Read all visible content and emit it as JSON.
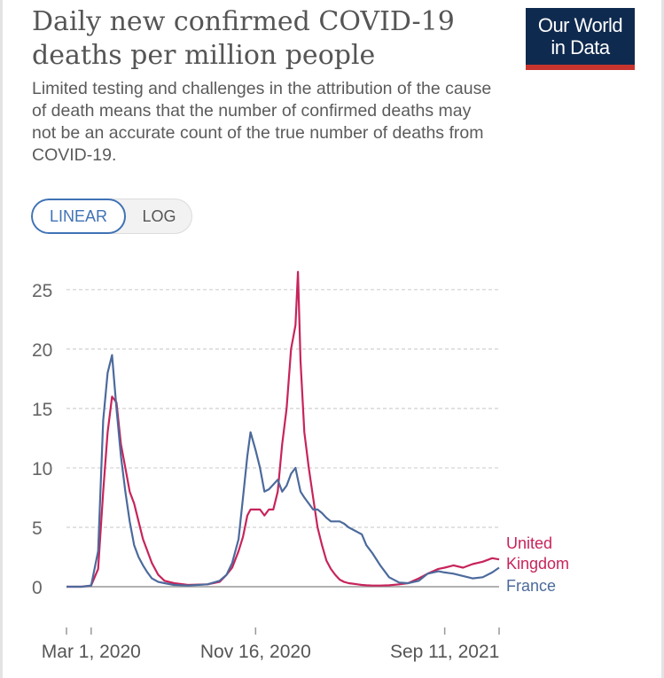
{
  "header": {
    "title_line1": "Daily new confirmed COVID-19",
    "title_line2": "deaths per million people",
    "subtitle": "Limited testing and challenges in the attribution of the cause of death means that the number of confirmed deaths may not be an accurate count of the true number of deaths from COVID-19.",
    "logo_line1": "Our World",
    "logo_line2": "in Data"
  },
  "scale_toggle": {
    "linear_label": "LINEAR",
    "log_label": "LOG",
    "selected": "LINEAR"
  },
  "colors": {
    "uk": "#c7245a",
    "france": "#4c6a9c",
    "grid": "#d0d0d0",
    "axis": "#999999",
    "toggle_accent": "#3f72b5"
  },
  "chart_data": {
    "type": "line",
    "title": "Daily new confirmed COVID-19 deaths per million people",
    "ylim": [
      0,
      27
    ],
    "yticks": [
      0,
      5,
      10,
      15,
      20,
      25
    ],
    "ytick_labels": [
      "0",
      "5",
      "10",
      "15",
      "20",
      "25"
    ],
    "xlim": [
      "2020-01-22",
      "2021-12-06"
    ],
    "xticks": [
      "2020-01-22",
      "2020-03-01",
      "2020-11-16",
      "2021-09-11",
      "2021-12-06"
    ],
    "xtick_labels": [
      "",
      "Mar 1, 2020",
      "Nov 16, 2020",
      "Sep 11, 2021",
      ""
    ],
    "grid": true,
    "x": [
      "2020-01-22",
      "2020-02-15",
      "2020-03-01",
      "2020-03-12",
      "2020-03-20",
      "2020-03-27",
      "2020-04-03",
      "2020-04-10",
      "2020-04-17",
      "2020-04-24",
      "2020-05-01",
      "2020-05-08",
      "2020-05-15",
      "2020-05-22",
      "2020-05-29",
      "2020-06-05",
      "2020-06-15",
      "2020-06-25",
      "2020-07-10",
      "2020-08-01",
      "2020-09-01",
      "2020-09-20",
      "2020-10-01",
      "2020-10-10",
      "2020-10-20",
      "2020-10-27",
      "2020-11-03",
      "2020-11-08",
      "2020-11-16",
      "2020-11-23",
      "2020-11-30",
      "2020-12-07",
      "2020-12-14",
      "2020-12-21",
      "2020-12-28",
      "2021-01-04",
      "2021-01-11",
      "2021-01-18",
      "2021-01-22",
      "2021-01-26",
      "2021-02-01",
      "2021-02-08",
      "2021-02-15",
      "2021-02-22",
      "2021-03-01",
      "2021-03-08",
      "2021-03-15",
      "2021-03-22",
      "2021-03-29",
      "2021-04-05",
      "2021-04-12",
      "2021-04-19",
      "2021-04-26",
      "2021-05-03",
      "2021-05-10",
      "2021-05-20",
      "2021-06-01",
      "2021-06-15",
      "2021-07-01",
      "2021-07-15",
      "2021-08-01",
      "2021-08-15",
      "2021-09-01",
      "2021-09-11",
      "2021-09-25",
      "2021-10-10",
      "2021-10-25",
      "2021-11-10",
      "2021-11-25",
      "2021-12-06"
    ],
    "series": [
      {
        "name": "United Kingdom",
        "color": "#c7245a",
        "values": [
          0,
          0,
          0.1,
          1.5,
          8,
          13,
          16,
          15.5,
          12,
          10,
          8,
          7,
          5.5,
          4,
          3,
          2,
          1,
          0.5,
          0.3,
          0.15,
          0.2,
          0.4,
          1,
          1.6,
          3,
          4.2,
          6,
          6.5,
          6.5,
          6.5,
          6,
          6.5,
          6.5,
          8,
          12,
          15,
          20,
          22,
          26.5,
          19,
          13,
          10,
          7.5,
          5,
          3.5,
          2.2,
          1.5,
          1,
          0.6,
          0.4,
          0.3,
          0.25,
          0.2,
          0.15,
          0.12,
          0.1,
          0.1,
          0.12,
          0.2,
          0.3,
          0.7,
          1.1,
          1.5,
          1.6,
          1.8,
          1.6,
          1.9,
          2.1,
          2.4,
          2.3
        ]
      },
      {
        "name": "France",
        "color": "#4c6a9c",
        "values": [
          0,
          0,
          0.1,
          3,
          14,
          18,
          19.5,
          15,
          11,
          8,
          5.5,
          3.5,
          2.5,
          1.8,
          1.2,
          0.7,
          0.4,
          0.3,
          0.15,
          0.1,
          0.2,
          0.5,
          1,
          2,
          4,
          7.5,
          11,
          13,
          11.5,
          10,
          8,
          8.2,
          8.6,
          9,
          8,
          8.5,
          9.5,
          10,
          9,
          8,
          7.5,
          7,
          6.5,
          6.5,
          6.2,
          5.8,
          5.5,
          5.5,
          5.5,
          5.3,
          5,
          4.8,
          4.6,
          4.4,
          3.5,
          2.8,
          1.8,
          0.8,
          0.35,
          0.3,
          0.5,
          1.1,
          1.3,
          1.2,
          1.1,
          0.9,
          0.7,
          0.8,
          1.2,
          1.6
        ]
      }
    ],
    "series_labels": {
      "uk_line1": "United",
      "uk_line2": "Kingdom",
      "france": "France"
    }
  }
}
